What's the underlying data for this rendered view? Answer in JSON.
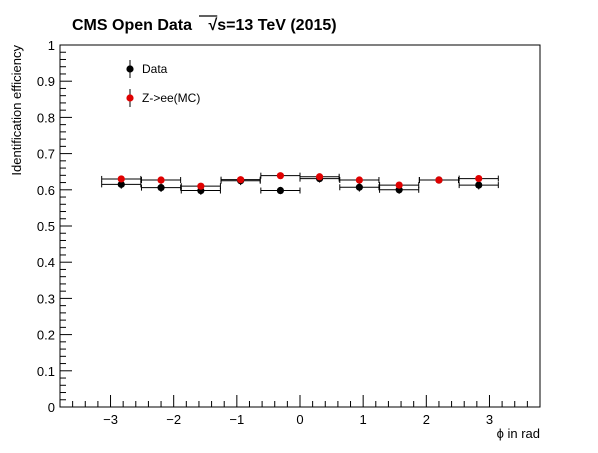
{
  "chart_data": {
    "type": "scatter",
    "title": "CMS Open Data",
    "title_extra": "=13 TeV (2015)",
    "title_sqrt_symbol": "√",
    "title_sqrt_var": "s",
    "xlabel": "ϕ in rad",
    "ylabel": "Identification efficiency",
    "xlim": [
      -3.8,
      3.8
    ],
    "ylim": [
      0,
      1
    ],
    "xticks": [
      -3,
      -2,
      -1,
      0,
      1,
      2,
      3
    ],
    "xtick_labels": [
      "−3",
      "−2",
      "−1",
      "0",
      "1",
      "2",
      "3"
    ],
    "yticks": [
      0,
      0.1,
      0.2,
      0.3,
      0.4,
      0.5,
      0.6,
      0.7,
      0.8,
      0.9,
      1
    ],
    "ytick_labels": [
      "0",
      "0.1",
      "0.2",
      "0.3",
      "0.4",
      "0.5",
      "0.6",
      "0.7",
      "0.8",
      "0.9",
      "1"
    ],
    "grid": false,
    "legend_position": "top-left",
    "series": [
      {
        "name": "Data",
        "color": "#000000",
        "points": [
          {
            "x": -2.83,
            "xerr": 0.31,
            "y": 0.615,
            "yerr": 0.012
          },
          {
            "x": -2.2,
            "xerr": 0.31,
            "y": 0.606,
            "yerr": 0.012
          },
          {
            "x": -1.57,
            "xerr": 0.31,
            "y": 0.598,
            "yerr": 0.012
          },
          {
            "x": -0.94,
            "xerr": 0.31,
            "y": 0.625,
            "yerr": 0.012
          },
          {
            "x": -0.31,
            "xerr": 0.31,
            "y": 0.598,
            "yerr": 0.01
          },
          {
            "x": 0.31,
            "xerr": 0.31,
            "y": 0.631,
            "yerr": 0.011
          },
          {
            "x": 0.94,
            "xerr": 0.31,
            "y": 0.607,
            "yerr": 0.012
          },
          {
            "x": 1.57,
            "xerr": 0.31,
            "y": 0.6,
            "yerr": 0.011
          },
          {
            "x": 2.2,
            "xerr": 0.31,
            "y": 0.627,
            "yerr": 0.01
          },
          {
            "x": 2.83,
            "xerr": 0.31,
            "y": 0.613,
            "yerr": 0.012
          }
        ]
      },
      {
        "name": "Z->ee(MC)",
        "color": "#e00000",
        "points": [
          {
            "x": -2.83,
            "xerr": 0.31,
            "y": 0.63,
            "yerr": 0.004
          },
          {
            "x": -2.2,
            "xerr": 0.31,
            "y": 0.627,
            "yerr": 0.004
          },
          {
            "x": -1.57,
            "xerr": 0.31,
            "y": 0.61,
            "yerr": 0.004
          },
          {
            "x": -0.94,
            "xerr": 0.31,
            "y": 0.628,
            "yerr": 0.004
          },
          {
            "x": -0.31,
            "xerr": 0.31,
            "y": 0.639,
            "yerr": 0.004
          },
          {
            "x": 0.31,
            "xerr": 0.31,
            "y": 0.636,
            "yerr": 0.004
          },
          {
            "x": 0.94,
            "xerr": 0.31,
            "y": 0.627,
            "yerr": 0.004
          },
          {
            "x": 1.57,
            "xerr": 0.31,
            "y": 0.613,
            "yerr": 0.004
          },
          {
            "x": 2.2,
            "xerr": 0.31,
            "y": 0.627,
            "yerr": 0.004
          },
          {
            "x": 2.83,
            "xerr": 0.31,
            "y": 0.631,
            "yerr": 0.004
          }
        ]
      }
    ]
  }
}
